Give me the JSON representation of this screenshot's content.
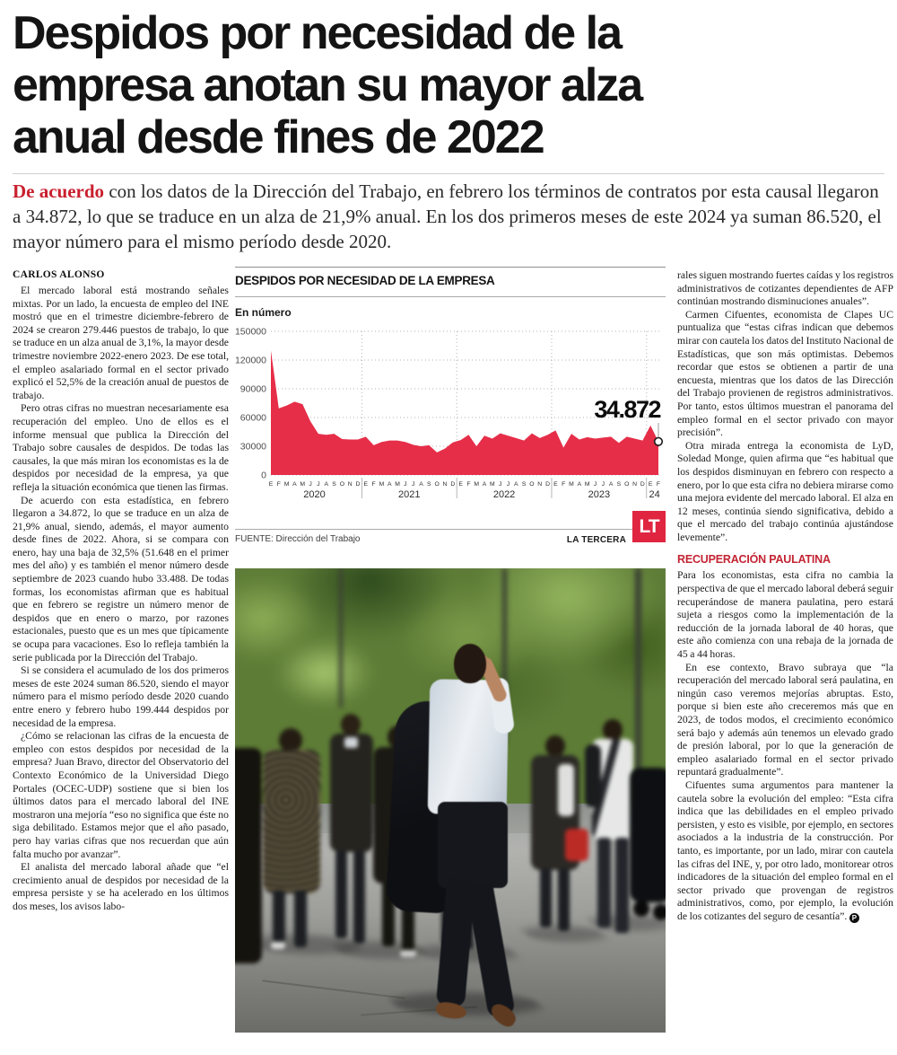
{
  "article": {
    "headline": "Despidos por necesidad de la empresa anotan su mayor alza anual desde fines de 2022",
    "lede_lead_in": "De acuerdo",
    "lede_rest": " con los datos de la Dirección del Trabajo, en febrero los términos de contratos por esta causal llegaron a 34.872, lo que se traduce en un alza de 21,9% anual. En los dos primeros meses de este 2024 ya suman 86.520, el mayor número para el mismo período desde 2020.",
    "byline": "CARLOS ALONSO",
    "left_paragraphs": [
      "El mercado laboral está mostrando señales mixtas. Por un lado, la encuesta de empleo del INE mostró que en el trimestre diciembre-febrero de 2024 se crearon 279.446 puestos de trabajo, lo que se traduce en un alza anual de 3,1%, la mayor desde trimestre noviembre 2022-enero 2023. De ese total, el empleo asalariado formal en el sector privado explicó el 52,5% de la creación anual de puestos de trabajo.",
      "Pero otras cifras no muestran necesariamente esa recuperación del empleo. Uno de ellos es el informe mensual que publica la Dirección del Trabajo sobre causales de despidos. De todas las causales, la que más miran los economistas es la de despidos por necesidad de la empresa, ya que refleja la situación económica que tienen las firmas.",
      "De acuerdo con esta estadística, en febrero llegaron a 34.872, lo que se traduce en un alza de 21,9% anual, siendo, además, el mayor aumento desde fines de 2022. Ahora, si se compara con enero, hay una baja de 32,5% (51.648 en el primer mes del año) y es también el menor número desde septiembre de 2023 cuando hubo 33.488. De todas formas, los economistas afirman que es habitual que en febrero se registre un número menor de despidos que en enero o marzo, por razones estacionales, puesto que es un mes que típicamente se ocupa para vacaciones. Eso lo refleja también la serie publicada por la Dirección del Trabajo.",
      "Si se considera el acumulado de los dos primeros meses de este 2024 suman 86.520, siendo el mayor número para el mismo período desde 2020 cuando entre enero y febrero hubo 199.444 despidos por necesidad de la empresa.",
      "¿Cómo se relacionan las cifras de la encuesta de empleo con estos despidos por necesidad de la empresa? Juan Bravo, director del Observatorio del Contexto Económico de la Universidad Diego Portales (OCEC-UDP) sostiene que si bien los últimos datos para el mercado laboral del INE mostraron una mejoría “eso no significa que éste no siga debilitado. Estamos mejor que el año pasado, pero hay varias cifras que nos recuerdan que aún falta mucho por avanzar”.",
      "El analista del mercado laboral añade que “el crecimiento anual de despidos por necesidad de la empresa persiste y se ha acelerado en los últimos dos meses, los avisos labo-"
    ],
    "right_paragraphs_top": [
      "rales siguen mostrando fuertes caídas y los registros administrativos de cotizantes dependientes de AFP continúan mostrando disminuciones anuales”.",
      "Carmen Cifuentes, economista de Clapes UC puntualiza que “estas cifras indican que debemos mirar con cautela los datos del Instituto Nacional de Estadísticas, que son más optimistas. Debemos recordar que estos se obtienen a partir de una encuesta, mientras que los datos de las Dirección del Trabajo provienen de registros administrativos. Por tanto, estos últimos muestran el panorama del empleo formal en el sector privado con mayor precisión”.",
      "Otra mirada entrega la economista de LyD, Soledad Monge, quien afirma que “es habitual que los despidos disminuyan en febrero con respecto a enero, por lo que esta cifra no debiera mirarse como una mejora evidente del mercado laboral. El alza en 12 meses, continúa siendo significativa, debido a que el mercado del trabajo continúa ajustándose levemente”."
    ],
    "subhead": "RECUPERACIÓN PAULATINA",
    "right_paragraphs_bottom": [
      "Para los economistas, esta cifra no cambia la perspectiva de que el mercado laboral deberá seguir recuperándose de manera paulatina, pero estará sujeta a riesgos como la implementación de la reducción de la jornada laboral de 40 horas, que este año comienza con una rebaja de la jornada de 45 a 44 horas.",
      "En ese contexto, Bravo subraya que “la recuperación del mercado laboral será paulatina, en ningún caso veremos mejorías abruptas. Esto, porque si bien este año creceremos más que en 2023, de todos modos, el crecimiento económico será bajo y además aún tenemos un elevado grado de presión laboral, por lo que la generación de empleo asalariado formal en el sector privado repuntará gradualmente”.",
      "Cifuentes suma argumentos para mantener la cautela sobre la evolución del empleo: “Esta cifra indica que las debilidades en el empleo privado persisten, y esto es visible, por ejemplo, en sectores asociados a la industria de la construcción. Por tanto, es importante, por un lado, mirar con cautela las cifras del INE, y, por otro lado, monitorear otros indicadores de la situación del empleo formal en el sector privado que provengan de registros administrativos, como, por ejemplo, la evolución de los cotizantes del seguro de cesantía”."
    ],
    "end_mark": "P"
  },
  "chart_block": {
    "title": "DESPIDOS POR NECESIDAD DE LA EMPRESA",
    "unit_label": "En número",
    "source": "FUENTE: Dirección del Trabajo",
    "brand": "LA TERCERA",
    "logo": "LT"
  },
  "chart_data": {
    "type": "area",
    "title": "DESPIDOS POR NECESIDAD DE LA EMPRESA",
    "ylabel": "En número",
    "series_name": "Términos de contrato por necesidad de la empresa",
    "month_labels": [
      "E",
      "F",
      "M",
      "A",
      "M",
      "J",
      "J",
      "A",
      "S",
      "O",
      "N",
      "D",
      "E",
      "F",
      "M",
      "A",
      "M",
      "J",
      "J",
      "A",
      "S",
      "O",
      "N",
      "D",
      "E",
      "F",
      "M",
      "A",
      "M",
      "J",
      "J",
      "A",
      "S",
      "O",
      "N",
      "D",
      "E",
      "F",
      "M",
      "A",
      "M",
      "J",
      "J",
      "A",
      "S",
      "O",
      "N",
      "D",
      "E",
      "F"
    ],
    "year_groups": [
      {
        "label": "2020",
        "count": 12
      },
      {
        "label": "2021",
        "count": 12
      },
      {
        "label": "2022",
        "count": 12
      },
      {
        "label": "2023",
        "count": 12
      },
      {
        "label": "24",
        "count": 2
      }
    ],
    "values": [
      130000,
      69444,
      72500,
      76500,
      74000,
      56000,
      43000,
      42000,
      43000,
      37500,
      37000,
      37000,
      40000,
      31000,
      34500,
      36000,
      36000,
      34500,
      31500,
      30000,
      31000,
      23500,
      27500,
      34000,
      36500,
      42000,
      30000,
      41000,
      38000,
      43500,
      41000,
      38500,
      36000,
      43500,
      38500,
      42000,
      46500,
      28600,
      43000,
      37000,
      39500,
      38000,
      39000,
      40000,
      33488,
      40000,
      38000,
      36000,
      51648,
      34872
    ],
    "yticks": [
      0,
      30000,
      60000,
      90000,
      120000,
      150000
    ],
    "ylim": [
      0,
      150000
    ],
    "annotation": {
      "label": "34.872",
      "index": 49
    },
    "area_color": "#e62e49",
    "grid": "dotted",
    "legend": "none"
  },
  "colors": {
    "accent_red": "#c9202f",
    "subhead_red": "#c32433",
    "chart_red": "#e62e49",
    "logo_red": "#e02540"
  }
}
